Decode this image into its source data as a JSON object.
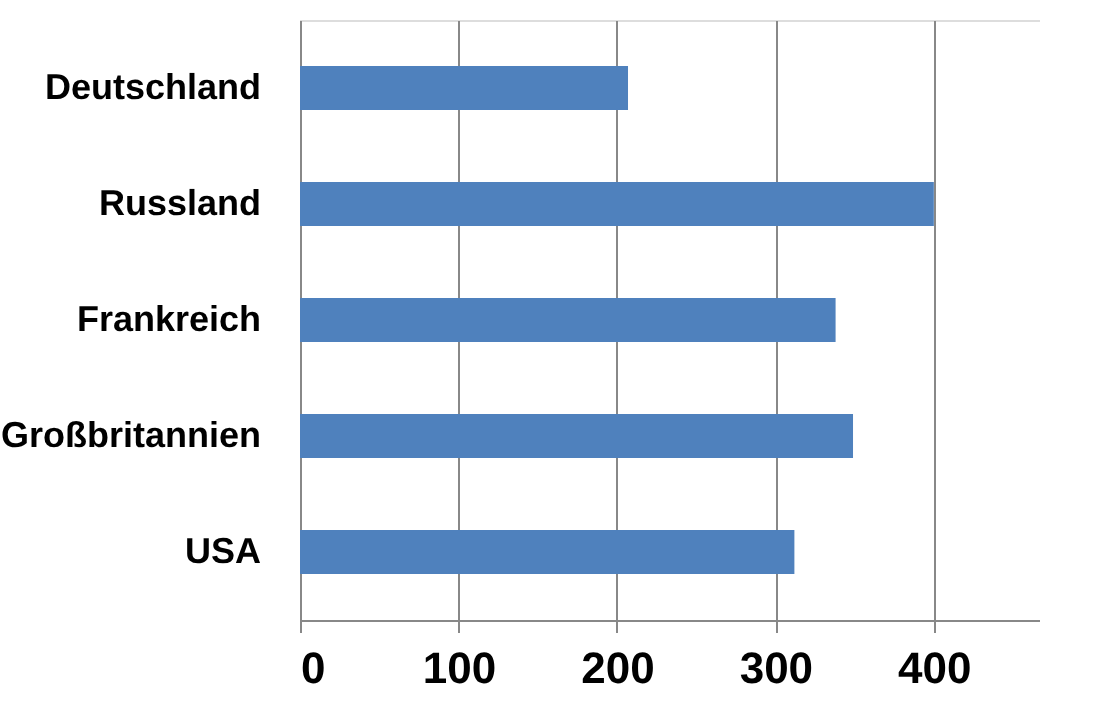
{
  "chart_data": {
    "type": "bar",
    "orientation": "horizontal",
    "categories": [
      "Deutschland",
      "Russland",
      "Frankreich",
      "Großbritannien",
      "USA"
    ],
    "values": [
      207,
      400,
      338,
      349,
      312
    ],
    "color": "#4f81bd",
    "xlim": [
      0,
      467
    ],
    "xticks": [
      0,
      100,
      200,
      300,
      400
    ],
    "grid": "x"
  }
}
